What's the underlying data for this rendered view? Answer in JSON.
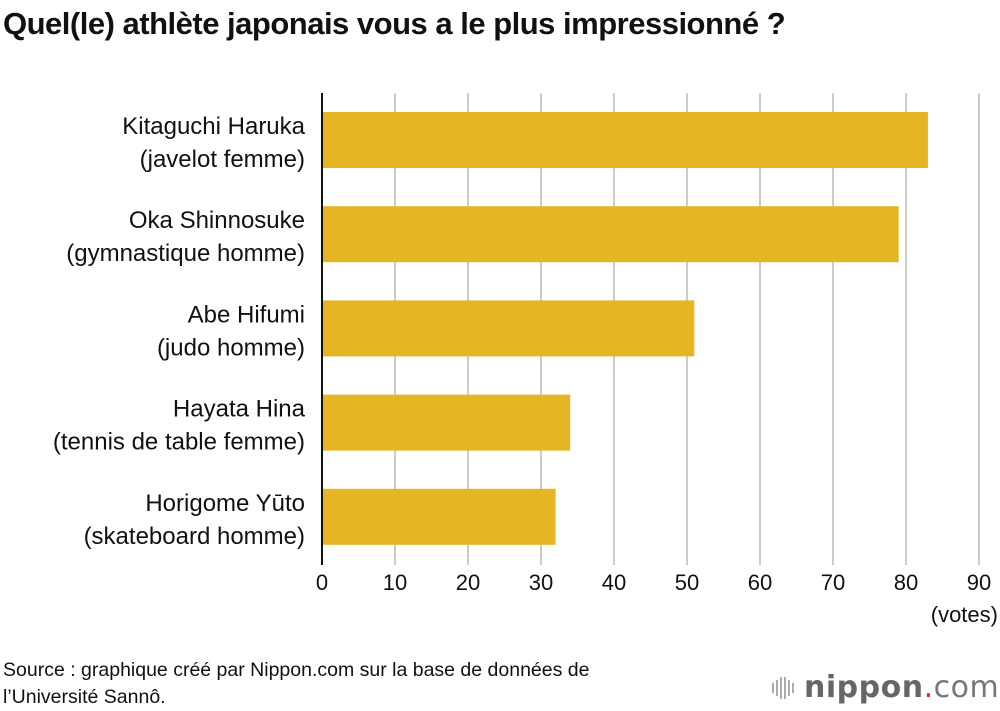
{
  "title": "Quel(le) athlète japonais vous a le plus impressionné ?",
  "source": [
    "Source : graphique créé par Nippon.com sur la base de données de",
    "l’Université Sannô."
  ],
  "logo": {
    "name": "nippon",
    "dot": ".",
    "suffix": "com"
  },
  "chart_data": {
    "type": "bar",
    "orientation": "horizontal",
    "title": "Quel(le) athlète japonais vous a le plus impressionné ?",
    "categories": [
      [
        "Kitaguchi Haruka",
        "(javelot femme)"
      ],
      [
        "Oka Shinnosuke",
        "(gymnastique homme)"
      ],
      [
        "Abe Hifumi",
        "(judo homme)"
      ],
      [
        "Hayata Hina",
        "(tennis de table femme)"
      ],
      [
        "Horigome Yūto",
        "(skateboard homme)"
      ]
    ],
    "values": [
      83,
      79,
      51,
      34,
      32
    ],
    "xlabel": "(votes)",
    "xlim": [
      0,
      90
    ],
    "xticks": [
      0,
      10,
      20,
      30,
      40,
      50,
      60,
      70,
      80,
      90
    ],
    "grid": true,
    "colors": {
      "bar": "#e5b523",
      "grid": "#cccccc",
      "axis": "#111111"
    }
  }
}
